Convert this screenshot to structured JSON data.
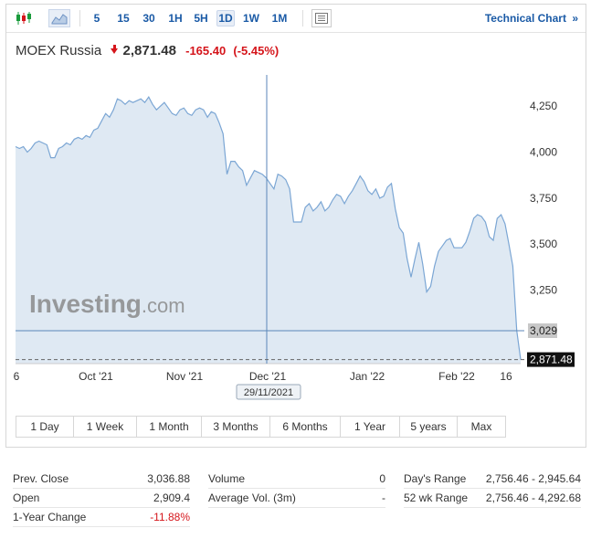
{
  "toolbar": {
    "candle_icon": "candlestick-chart-icon",
    "area_icon": "area-chart-icon",
    "intervals": [
      "5",
      "15",
      "30",
      "1H",
      "5H",
      "1D",
      "1W",
      "1M"
    ],
    "active_interval": "1D",
    "table_icon": "table-icon",
    "tech_chart_label": "Technical Chart",
    "tech_chart_arrow": "»"
  },
  "instrument": {
    "name": "MOEX Russia",
    "price": "2,871.48",
    "change": "-165.40",
    "change_pct": "(-5.45%)"
  },
  "chart_data": {
    "type": "area",
    "y_ticks": [
      "4,250",
      "4,000",
      "3,750",
      "3,500",
      "3,250"
    ],
    "x_ticks": [
      "6",
      "Oct '21",
      "Nov '21",
      "Dec '21",
      "Jan '22",
      "Feb '22",
      "16"
    ],
    "ylim": [
      2850,
      4420
    ],
    "crosshair_date": "29/11/2021",
    "crosshair_value": "3,029",
    "last_value": "2,871.48",
    "watermark": "Investing",
    "watermark_suffix": ".com",
    "values": [
      4030,
      4020,
      4030,
      4000,
      4020,
      4050,
      4060,
      4050,
      4040,
      3970,
      3970,
      4020,
      4030,
      4050,
      4040,
      4070,
      4080,
      4070,
      4090,
      4080,
      4120,
      4130,
      4170,
      4210,
      4190,
      4230,
      4290,
      4280,
      4260,
      4280,
      4270,
      4280,
      4290,
      4270,
      4300,
      4260,
      4230,
      4250,
      4270,
      4240,
      4210,
      4200,
      4230,
      4240,
      4210,
      4200,
      4230,
      4240,
      4230,
      4190,
      4220,
      4210,
      4160,
      4100,
      3880,
      3950,
      3950,
      3920,
      3900,
      3820,
      3860,
      3900,
      3890,
      3880,
      3860,
      3830,
      3800,
      3880,
      3870,
      3850,
      3800,
      3620,
      3620,
      3620,
      3700,
      3720,
      3680,
      3700,
      3730,
      3680,
      3700,
      3740,
      3770,
      3760,
      3720,
      3760,
      3790,
      3830,
      3870,
      3840,
      3790,
      3770,
      3800,
      3750,
      3760,
      3810,
      3830,
      3690,
      3590,
      3560,
      3420,
      3320,
      3420,
      3510,
      3390,
      3240,
      3270,
      3380,
      3460,
      3490,
      3520,
      3530,
      3480,
      3480,
      3480,
      3510,
      3570,
      3640,
      3660,
      3650,
      3620,
      3540,
      3520,
      3640,
      3660,
      3610,
      3500,
      3380,
      3030,
      2872
    ]
  },
  "ranges": [
    "1 Day",
    "1 Week",
    "1 Month",
    "3 Months",
    "6 Months",
    "1 Year",
    "5 years",
    "Max"
  ],
  "stats": {
    "col1": [
      {
        "label": "Prev. Close",
        "value": "3,036.88"
      },
      {
        "label": "Open",
        "value": "2,909.4"
      },
      {
        "label": "1-Year Change",
        "value": "-11.88%"
      }
    ],
    "col2": [
      {
        "label": "Volume",
        "value": "0"
      },
      {
        "label": "Average Vol. (3m)",
        "value": "-"
      }
    ],
    "col3": [
      {
        "label": "Day's Range",
        "value": "2,756.46 - 2,945.64"
      },
      {
        "label": "52 wk Range",
        "value": "2,756.46 - 4,292.68"
      }
    ]
  }
}
